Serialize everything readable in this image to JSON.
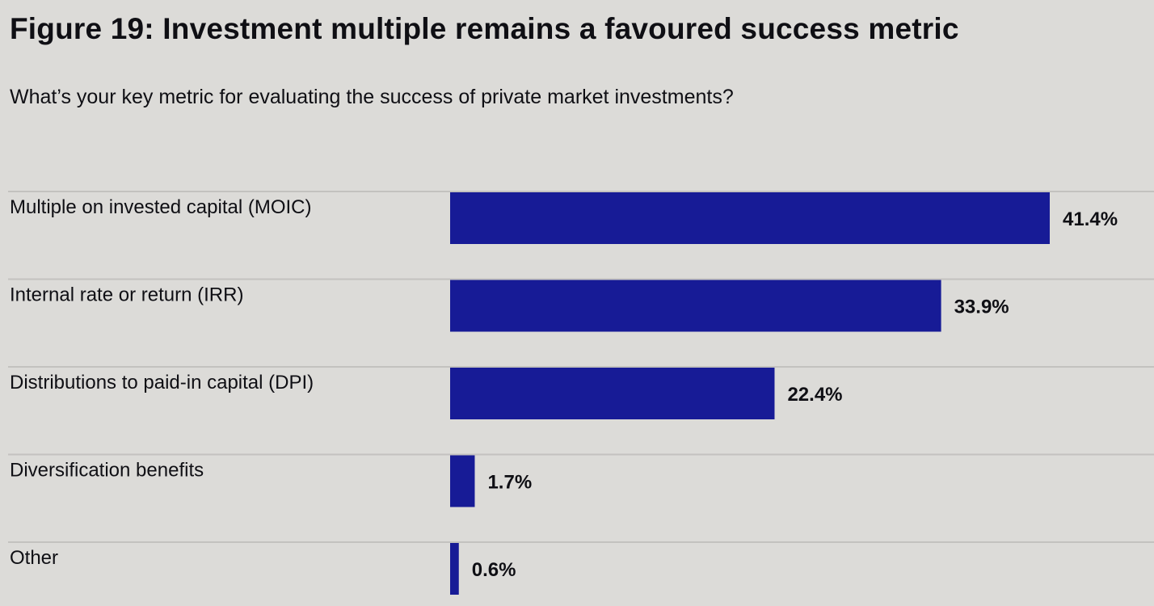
{
  "chart_data": {
    "type": "bar",
    "orientation": "horizontal",
    "title": "Figure 19: Investment multiple remains a favoured success metric",
    "subtitle": "What’s your key metric for evaluating the success of private market investments?",
    "categories": [
      "Multiple on invested capital (MOIC)",
      "Internal rate or return (IRR)",
      "Distributions to paid-in capital (DPI)",
      "Diversification benefits",
      "Other"
    ],
    "values": [
      41.4,
      33.9,
      22.4,
      1.7,
      0.6
    ],
    "value_labels": [
      "41.4%",
      "33.9%",
      "22.4%",
      "1.7%",
      "0.6%"
    ],
    "unit": "%",
    "xlim": [
      0,
      41.4
    ],
    "grid": false,
    "legend": "none",
    "bar_color": "#171b96",
    "separator_color": "#c3c2bf"
  }
}
